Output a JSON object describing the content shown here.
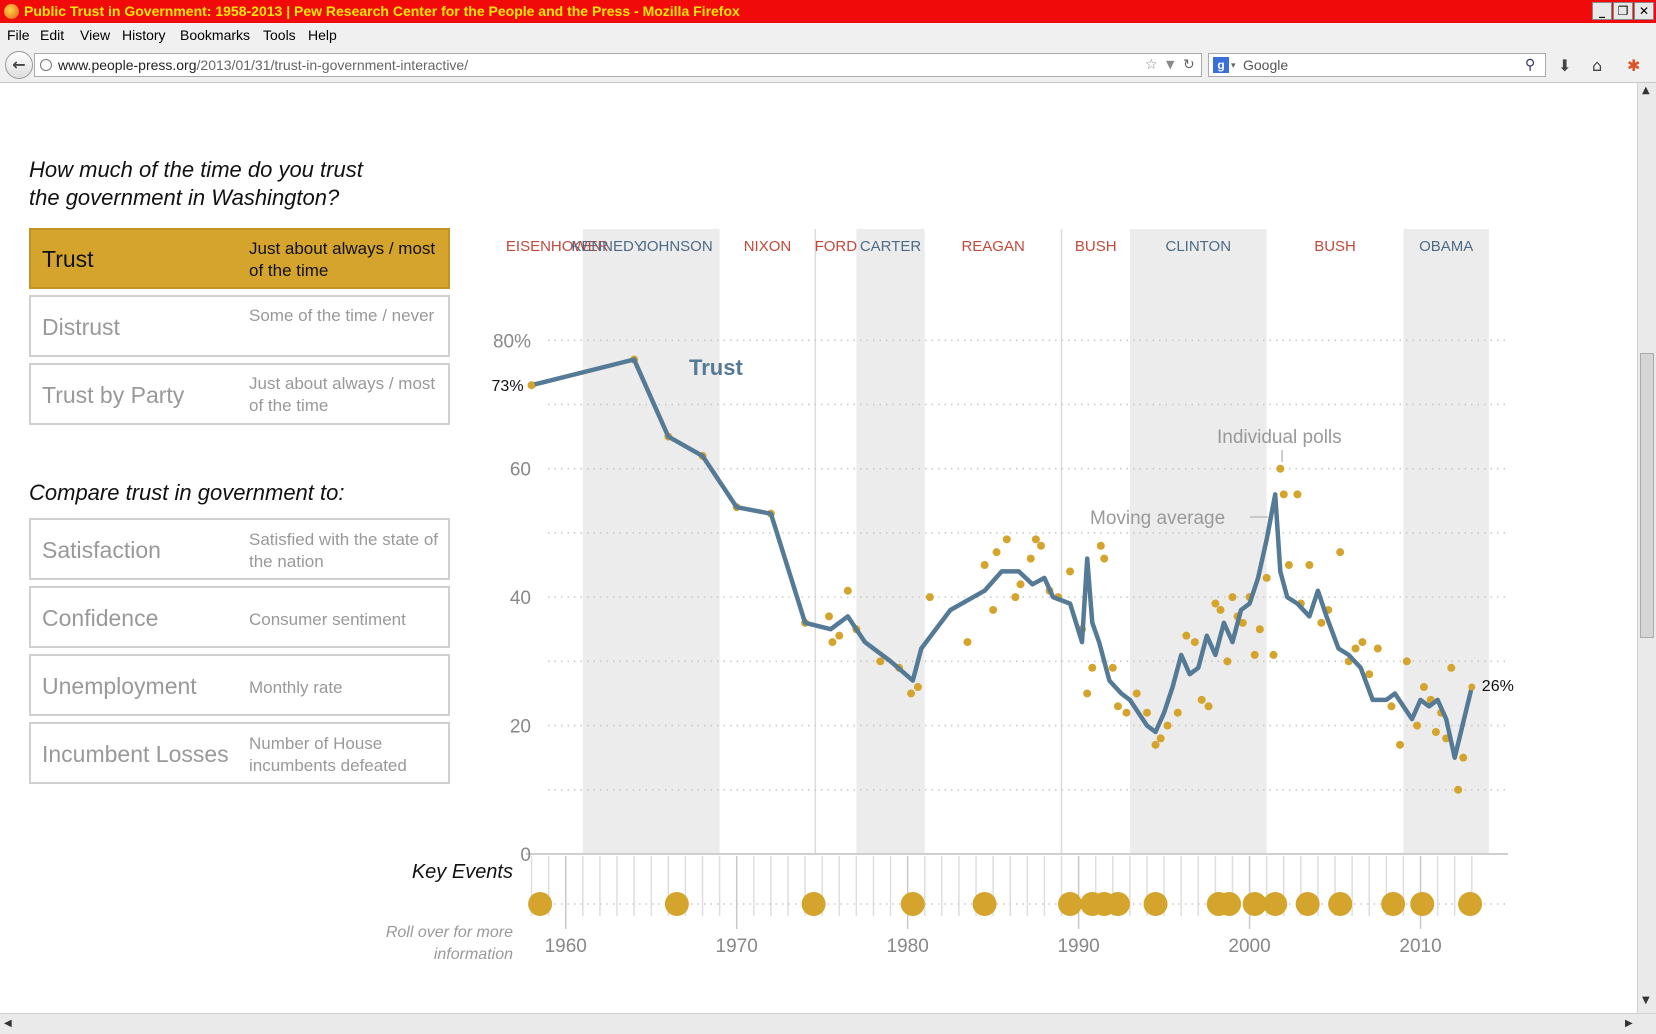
{
  "window": {
    "title": "Public Trust in Government: 1958-2013 | Pew Research Center for the People and the Press - Mozilla Firefox",
    "buttons": [
      "_",
      "❐",
      "✕"
    ]
  },
  "menu": [
    "File",
    "Edit",
    "View",
    "History",
    "Bookmarks",
    "Tools",
    "Help"
  ],
  "nav": {
    "url_domain": "www.people-press.org",
    "url_path": "/2013/01/31/trust-in-government-interactive/",
    "search_placeholder": "Google"
  },
  "page": {
    "question": [
      "How much of the time do you trust",
      "the government in Washington?"
    ],
    "options": [
      {
        "label": "Trust",
        "desc": "Just about always / most of the time",
        "active": true
      },
      {
        "label": "Distrust",
        "desc": "Some of the time / never",
        "active": false
      },
      {
        "label": "Trust by Party",
        "desc": "Just about always / most of the time",
        "active": false
      }
    ],
    "compare_heading": "Compare trust in government to:",
    "compare": [
      {
        "label": "Satisfaction",
        "desc": "Satisfied with the state of the nation"
      },
      {
        "label": "Confidence",
        "desc": "Consumer sentiment"
      },
      {
        "label": "Unemployment",
        "desc": "Monthly rate"
      },
      {
        "label": "Incumbent Losses",
        "desc": "Number of House incumbents defeated"
      }
    ],
    "key_events_label": "Key Events",
    "key_events_hint": [
      "Roll over for more",
      "information"
    ]
  },
  "chart_data": {
    "type": "line",
    "presidents": [
      {
        "name": "EISENHOWER",
        "party": "R",
        "start": 1958,
        "end": 1961
      },
      {
        "name": "KENNEDY",
        "party": "D",
        "start": 1961,
        "end": 1963.9
      },
      {
        "name": "JOHNSON",
        "party": "D",
        "start": 1963.9,
        "end": 1969
      },
      {
        "name": "NIXON",
        "party": "R",
        "start": 1969,
        "end": 1974.6
      },
      {
        "name": "FORD",
        "party": "R",
        "start": 1974.6,
        "end": 1977
      },
      {
        "name": "CARTER",
        "party": "D",
        "start": 1977,
        "end": 1981
      },
      {
        "name": "REAGAN",
        "party": "R",
        "start": 1981,
        "end": 1989
      },
      {
        "name": "BUSH",
        "party": "R",
        "start": 1989,
        "end": 1993
      },
      {
        "name": "CLINTON",
        "party": "D",
        "start": 1993,
        "end": 2001
      },
      {
        "name": "BUSH",
        "party": "R",
        "start": 2001,
        "end": 2009
      },
      {
        "name": "OBAMA",
        "party": "D",
        "start": 2009,
        "end": 2014
      }
    ],
    "yticks": [
      "80%",
      "60",
      "40",
      "20",
      "0"
    ],
    "ytick_values": [
      80,
      60,
      40,
      20,
      0
    ],
    "xticks": [
      "1960",
      "1970",
      "1980",
      "1990",
      "2000",
      "2010"
    ],
    "xtick_values": [
      1960,
      1970,
      1980,
      1990,
      2000,
      2010
    ],
    "xlim": [
      1957.5,
      2015
    ],
    "ylim": [
      0,
      83
    ],
    "series": [
      {
        "name": "Trust",
        "x": [
          1958,
          1964,
          1966,
          1968,
          1970,
          1972,
          1974,
          1975.5,
          1976.5,
          1977.5,
          1979,
          1980.3,
          1980.8,
          1982.5,
          1984.5,
          1985.5,
          1986.5,
          1987.3,
          1988,
          1988.5,
          1989.5,
          1990.2,
          1990.5,
          1990.8,
          1991.2,
          1991.8,
          1992.5,
          1993,
          1994,
          1994.5,
          1995,
          1995.5,
          1996,
          1996.5,
          1997,
          1997.5,
          1998,
          1998.5,
          1999,
          1999.5,
          2000,
          2000.5,
          2001,
          2001.5,
          2001.8,
          2002.2,
          2002.8,
          2003.5,
          2004,
          2004.5,
          2005.2,
          2005.8,
          2006.5,
          2007.2,
          2008,
          2008.5,
          2009.5,
          2010,
          2010.5,
          2011,
          2011.5,
          2012,
          2013
        ],
        "y": [
          73,
          77,
          65,
          62,
          54,
          53,
          36,
          35,
          37,
          33,
          30,
          27,
          32,
          38,
          41,
          44,
          44,
          42,
          43,
          40,
          39,
          33,
          46,
          36,
          33,
          27,
          25,
          24,
          20,
          19,
          22,
          26,
          31,
          28,
          29,
          34,
          31,
          36,
          33,
          38,
          39,
          43,
          49,
          56,
          44,
          40,
          39,
          37,
          41,
          37,
          32,
          31,
          29,
          24,
          24,
          25,
          21,
          24,
          23,
          24,
          21,
          15,
          26
        ]
      }
    ],
    "individual_polls": [
      [
        1958,
        73
      ],
      [
        1964,
        77
      ],
      [
        1966,
        65
      ],
      [
        1968,
        62
      ],
      [
        1970,
        54
      ],
      [
        1972,
        53
      ],
      [
        1974,
        36
      ],
      [
        1975.4,
        37
      ],
      [
        1975.6,
        33
      ],
      [
        1976,
        34
      ],
      [
        1976.5,
        41
      ],
      [
        1977,
        35
      ],
      [
        1978.4,
        30
      ],
      [
        1979.5,
        29
      ],
      [
        1980.2,
        25
      ],
      [
        1980.6,
        26
      ],
      [
        1981.3,
        40
      ],
      [
        1983.5,
        33
      ],
      [
        1984.5,
        45
      ],
      [
        1985.2,
        47
      ],
      [
        1985,
        38
      ],
      [
        1985.8,
        49
      ],
      [
        1986.3,
        40
      ],
      [
        1986.6,
        42
      ],
      [
        1987.2,
        46
      ],
      [
        1987.5,
        49
      ],
      [
        1987.8,
        48
      ],
      [
        1988.3,
        41
      ],
      [
        1988.8,
        40
      ],
      [
        1989.5,
        44
      ],
      [
        1990.2,
        35
      ],
      [
        1990.5,
        25
      ],
      [
        1990.8,
        29
      ],
      [
        1991.3,
        48
      ],
      [
        1991.5,
        46
      ],
      [
        1992,
        29
      ],
      [
        1992.3,
        23
      ],
      [
        1992.8,
        22
      ],
      [
        1993.4,
        25
      ],
      [
        1994,
        22
      ],
      [
        1994.5,
        17
      ],
      [
        1994.8,
        18
      ],
      [
        1995.2,
        20
      ],
      [
        1995.8,
        22
      ],
      [
        1996.3,
        34
      ],
      [
        1996.8,
        33
      ],
      [
        1997.2,
        24
      ],
      [
        1997.6,
        23
      ],
      [
        1998,
        39
      ],
      [
        1998.3,
        38
      ],
      [
        1998.7,
        30
      ],
      [
        1999,
        40
      ],
      [
        1999.3,
        37
      ],
      [
        1999.6,
        36
      ],
      [
        2000,
        40
      ],
      [
        2000.3,
        31
      ],
      [
        2000.6,
        35
      ],
      [
        2001,
        43
      ],
      [
        2001.4,
        31
      ],
      [
        2001.8,
        60
      ],
      [
        2002,
        56
      ],
      [
        2002.3,
        45
      ],
      [
        2002.8,
        56
      ],
      [
        2003,
        39
      ],
      [
        2003.5,
        45
      ],
      [
        2004.2,
        36
      ],
      [
        2004.6,
        38
      ],
      [
        2005.3,
        47
      ],
      [
        2005.8,
        30
      ],
      [
        2006.2,
        32
      ],
      [
        2006.6,
        33
      ],
      [
        2007,
        28
      ],
      [
        2007.5,
        32
      ],
      [
        2008.3,
        23
      ],
      [
        2008.8,
        17
      ],
      [
        2009.2,
        30
      ],
      [
        2009.8,
        20
      ],
      [
        2010.2,
        26
      ],
      [
        2010.6,
        24
      ],
      [
        2010.9,
        19
      ],
      [
        2011.2,
        22
      ],
      [
        2011.5,
        18
      ],
      [
        2011.8,
        29
      ],
      [
        2012.2,
        10
      ],
      [
        2012.5,
        15
      ]
    ],
    "annotations": {
      "series_label": "Trust",
      "start_value": "73%",
      "end_value": "26%",
      "polls_label": "Individual polls",
      "avg_label": "Moving average"
    },
    "key_events": [
      1958.5,
      1966.5,
      1974.5,
      1980.3,
      1984.5,
      1989.5,
      1990.8,
      1991.5,
      1992.3,
      1994.5,
      1998.2,
      1998.8,
      2000.3,
      2001.5,
      2003.4,
      2005.3,
      2008.4,
      2010.1,
      2012.9
    ],
    "colors": {
      "line": "#557a96",
      "poll": "#d4a42d",
      "band": "#ececec",
      "rep": "#c24a3b",
      "dem": "#4e6b86"
    }
  }
}
